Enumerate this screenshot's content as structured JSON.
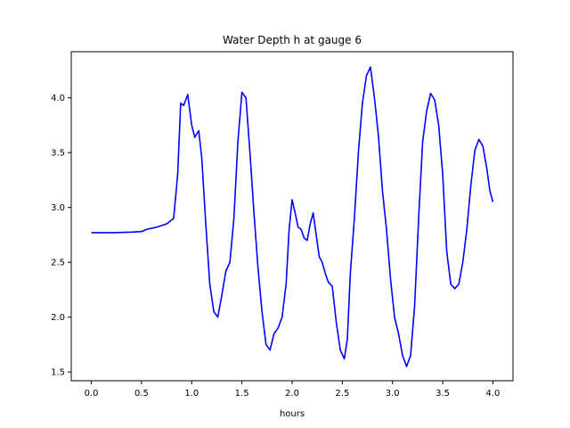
{
  "chart_data": {
    "type": "line",
    "title": "Water Depth h at gauge 6",
    "xlabel": "hours",
    "ylabel": "",
    "xlim": [
      -0.2,
      4.2
    ],
    "ylim": [
      1.42,
      4.42
    ],
    "x_ticks": [
      "0.0",
      "0.5",
      "1.0",
      "1.5",
      "2.0",
      "2.5",
      "3.0",
      "3.5",
      "4.0"
    ],
    "y_ticks": [
      "1.5",
      "2.0",
      "2.5",
      "3.0",
      "3.5",
      "4.0"
    ],
    "grid": false,
    "series": [
      {
        "color": "#0000ff",
        "points": [
          [
            0.0,
            2.77
          ],
          [
            0.2,
            2.77
          ],
          [
            0.4,
            2.775
          ],
          [
            0.5,
            2.78
          ],
          [
            0.55,
            2.8
          ],
          [
            0.65,
            2.82
          ],
          [
            0.75,
            2.85
          ],
          [
            0.82,
            2.9
          ],
          [
            0.86,
            3.3
          ],
          [
            0.89,
            3.95
          ],
          [
            0.92,
            3.93
          ],
          [
            0.96,
            4.03
          ],
          [
            1.0,
            3.75
          ],
          [
            1.03,
            3.64
          ],
          [
            1.07,
            3.7
          ],
          [
            1.1,
            3.45
          ],
          [
            1.14,
            2.85
          ],
          [
            1.18,
            2.3
          ],
          [
            1.22,
            2.05
          ],
          [
            1.26,
            2.0
          ],
          [
            1.3,
            2.2
          ],
          [
            1.34,
            2.42
          ],
          [
            1.38,
            2.5
          ],
          [
            1.42,
            2.9
          ],
          [
            1.46,
            3.6
          ],
          [
            1.5,
            4.05
          ],
          [
            1.54,
            4.0
          ],
          [
            1.58,
            3.5
          ],
          [
            1.62,
            2.95
          ],
          [
            1.66,
            2.45
          ],
          [
            1.7,
            2.05
          ],
          [
            1.74,
            1.75
          ],
          [
            1.78,
            1.7
          ],
          [
            1.82,
            1.85
          ],
          [
            1.86,
            1.9
          ],
          [
            1.9,
            2.0
          ],
          [
            1.94,
            2.3
          ],
          [
            1.97,
            2.8
          ],
          [
            2.0,
            3.07
          ],
          [
            2.03,
            2.95
          ],
          [
            2.06,
            2.82
          ],
          [
            2.09,
            2.8
          ],
          [
            2.12,
            2.72
          ],
          [
            2.15,
            2.7
          ],
          [
            2.18,
            2.85
          ],
          [
            2.21,
            2.95
          ],
          [
            2.24,
            2.75
          ],
          [
            2.27,
            2.55
          ],
          [
            2.3,
            2.5
          ],
          [
            2.33,
            2.4
          ],
          [
            2.36,
            2.32
          ],
          [
            2.4,
            2.28
          ],
          [
            2.44,
            1.95
          ],
          [
            2.48,
            1.7
          ],
          [
            2.52,
            1.62
          ],
          [
            2.55,
            1.8
          ],
          [
            2.58,
            2.4
          ],
          [
            2.62,
            2.9
          ],
          [
            2.66,
            3.5
          ],
          [
            2.7,
            3.95
          ],
          [
            2.74,
            4.2
          ],
          [
            2.78,
            4.28
          ],
          [
            2.82,
            4.0
          ],
          [
            2.86,
            3.65
          ],
          [
            2.9,
            3.15
          ],
          [
            2.94,
            2.8
          ],
          [
            2.98,
            2.35
          ],
          [
            3.02,
            2.0
          ],
          [
            3.06,
            1.85
          ],
          [
            3.1,
            1.65
          ],
          [
            3.14,
            1.55
          ],
          [
            3.18,
            1.65
          ],
          [
            3.22,
            2.1
          ],
          [
            3.26,
            2.9
          ],
          [
            3.3,
            3.6
          ],
          [
            3.34,
            3.88
          ],
          [
            3.38,
            4.04
          ],
          [
            3.42,
            3.98
          ],
          [
            3.46,
            3.75
          ],
          [
            3.5,
            3.3
          ],
          [
            3.54,
            2.6
          ],
          [
            3.58,
            2.3
          ],
          [
            3.62,
            2.26
          ],
          [
            3.66,
            2.3
          ],
          [
            3.7,
            2.5
          ],
          [
            3.74,
            2.8
          ],
          [
            3.78,
            3.2
          ],
          [
            3.82,
            3.52
          ],
          [
            3.86,
            3.62
          ],
          [
            3.9,
            3.56
          ],
          [
            3.94,
            3.35
          ],
          [
            3.97,
            3.15
          ],
          [
            4.0,
            3.05
          ]
        ]
      }
    ]
  }
}
